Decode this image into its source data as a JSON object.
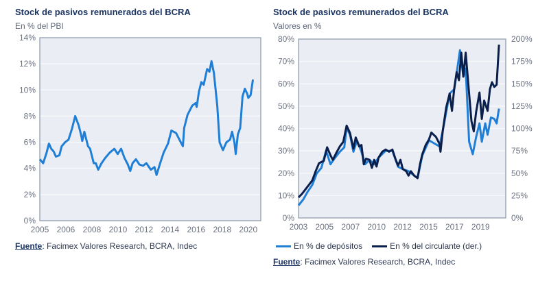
{
  "colors": {
    "light": "#1f7fd6",
    "dark": "#0b1f4d",
    "plot_bg": "#eaedf3",
    "grid": "#f7f8fb",
    "border": "#8a97a8"
  },
  "chart_data": [
    {
      "type": "line",
      "title": "Stock de pasivos remunerados del BCRA",
      "subtitle": "En % del PBI",
      "source_label": "Fuente",
      "source_text": ": Facimex Valores Research, BCRA, Indec",
      "x_tick_labels": [
        "2005",
        "2006",
        "2008",
        "2010",
        "2012",
        "2014",
        "2016",
        "2018",
        "2020"
      ],
      "x_range_index": [
        0,
        8.48
      ],
      "y_ticks": [
        "0%",
        "2%",
        "4%",
        "6%",
        "8%",
        "10%",
        "12%",
        "14%"
      ],
      "ylim": [
        0,
        14
      ],
      "grid": true,
      "series": [
        {
          "name": "Stock de pasivos remunerados (% PBI)",
          "color": "light",
          "x": [
            0,
            0.13,
            0.26,
            0.35,
            0.44,
            0.53,
            0.62,
            0.75,
            0.84,
            0.97,
            1.1,
            1.23,
            1.36,
            1.49,
            1.58,
            1.63,
            1.71,
            1.85,
            1.93,
            2.07,
            2.15,
            2.24,
            2.37,
            2.51,
            2.68,
            2.86,
            2.99,
            3.12,
            3.25,
            3.38,
            3.47,
            3.56,
            3.69,
            3.82,
            3.96,
            4.09,
            4.26,
            4.4,
            4.48,
            4.62,
            4.75,
            4.92,
            5.05,
            5.23,
            5.41,
            5.49,
            5.54,
            5.67,
            5.85,
            5.98,
            6.02,
            6.11,
            6.2,
            6.29,
            6.42,
            6.51,
            6.59,
            6.68,
            6.81,
            6.9,
            7.03,
            7.16,
            7.3,
            7.38,
            7.47,
            7.52,
            7.6,
            7.69,
            7.78,
            7.87,
            7.96,
            8.0,
            8.09,
            8.18
          ],
          "y": [
            4.7,
            4.4,
            5.2,
            5.9,
            5.5,
            5.3,
            4.9,
            5.0,
            5.7,
            6.0,
            6.2,
            7.0,
            8.0,
            7.3,
            6.6,
            6.1,
            6.8,
            5.7,
            5.5,
            4.4,
            4.4,
            3.9,
            4.4,
            4.8,
            5.2,
            5.5,
            5.1,
            5.5,
            4.8,
            4.3,
            3.8,
            4.4,
            4.7,
            4.3,
            4.2,
            4.4,
            3.9,
            4.1,
            3.5,
            4.4,
            5.2,
            5.9,
            6.9,
            6.7,
            6.0,
            5.7,
            7.1,
            8.1,
            8.8,
            9.0,
            8.7,
            9.9,
            10.6,
            10.4,
            11.6,
            11.4,
            12.2,
            11.3,
            8.8,
            6.0,
            5.4,
            6.0,
            6.2,
            6.8,
            6.0,
            5.1,
            6.6,
            7.1,
            9.5,
            10.1,
            9.7,
            9.4,
            9.6,
            10.8
          ]
        }
      ]
    },
    {
      "type": "line",
      "title": "Stock de pasivos remunerados del BCRA",
      "subtitle": "Valores en %",
      "source_label": "Fuente",
      "source_text": ": Facimex Valores Research, BCRA, Indec",
      "x_tick_labels": [
        "2003",
        "2005",
        "2007",
        "2010",
        "2012",
        "2015",
        "2017",
        "2019"
      ],
      "x_range_index": [
        0,
        7.97
      ],
      "y_ticks": [
        "0%",
        "10%",
        "20%",
        "30%",
        "40%",
        "50%",
        "60%",
        "70%",
        "80%"
      ],
      "ylim": [
        0,
        80
      ],
      "y2_ticks": [
        "0%",
        "25%",
        "50%",
        "75%",
        "100%",
        "125%",
        "150%",
        "175%",
        "200%"
      ],
      "y2lim": [
        0,
        200
      ],
      "grid": true,
      "legend_placement": "bottom",
      "series": [
        {
          "name": "En % de depósitos",
          "color": "light",
          "axis": "left",
          "x": [
            0,
            0.18,
            0.35,
            0.53,
            0.7,
            0.88,
            1.06,
            1.23,
            1.41,
            1.59,
            1.76,
            1.85,
            1.98,
            2.11,
            2.25,
            2.42,
            2.56,
            2.73,
            2.91,
            3.08,
            3.35,
            3.61,
            3.83,
            4.01,
            4.23,
            4.58,
            4.76,
            5.02,
            5.42,
            5.55,
            5.81,
            5.99,
            6.21,
            6.34,
            6.43,
            6.56,
            6.7,
            6.83,
            6.96,
            7.05,
            7.18,
            7.27,
            7.4,
            7.53,
            7.62,
            7.71
          ],
          "y": [
            5.6,
            8.2,
            11.7,
            14.8,
            19.9,
            22.4,
            30.1,
            24,
            27,
            29.6,
            31.6,
            40.3,
            37.2,
            29.6,
            34.7,
            29.6,
            24,
            26,
            24,
            27,
            30,
            30,
            22.9,
            21.9,
            20.9,
            17.8,
            28,
            34.7,
            32,
            39.2,
            55.6,
            57.6,
            75,
            63.2,
            66.8,
            34.1,
            28.5,
            36.2,
            42.3,
            34.1,
            42.3,
            37.2,
            44.9,
            44.3,
            42.3,
            48.9
          ]
        },
        {
          "name": "En % del circulante (der.)",
          "color": "dark",
          "axis": "right",
          "x": [
            0,
            0.13,
            0.26,
            0.4,
            0.53,
            0.66,
            0.79,
            0.88,
            0.97,
            1.1,
            1.23,
            1.32,
            1.45,
            1.59,
            1.72,
            1.85,
            1.98,
            2.11,
            2.2,
            2.33,
            2.42,
            2.51,
            2.6,
            2.73,
            2.82,
            2.91,
            3.0,
            3.08,
            3.22,
            3.35,
            3.48,
            3.61,
            3.74,
            3.83,
            3.92,
            4.01,
            4.14,
            4.23,
            4.32,
            4.45,
            4.58,
            4.67,
            4.76,
            4.89,
            5.02,
            5.11,
            5.29,
            5.42,
            5.46,
            5.55,
            5.68,
            5.81,
            5.9,
            5.99,
            6.08,
            6.17,
            6.26,
            6.34,
            6.43,
            6.56,
            6.65,
            6.74,
            6.83,
            6.96,
            7.05,
            7.14,
            7.27,
            7.36,
            7.44,
            7.53,
            7.62,
            7.71
          ],
          "y": [
            23,
            26.75,
            31.75,
            37,
            42,
            52.25,
            61.25,
            62.5,
            63.75,
            79,
            70,
            65,
            72.5,
            80,
            85,
            103.25,
            95,
            77.5,
            90,
            80,
            81.5,
            60,
            66.25,
            65,
            56,
            65,
            57.5,
            67.5,
            74,
            76.5,
            74,
            76.5,
            65,
            58.5,
            65,
            54.75,
            52.25,
            47.25,
            52.25,
            47.25,
            44.5,
            60,
            71.25,
            81.5,
            88,
            95.5,
            90.5,
            82.75,
            74,
            98,
            123.5,
            139,
            119.75,
            145.25,
            163,
            154,
            184.75,
            158,
            184.75,
            139,
            108.25,
            96.75,
            118.5,
            140.25,
            110.75,
            131.25,
            119.75,
            144,
            151.75,
            146.5,
            149,
            193.75
          ]
        }
      ]
    }
  ]
}
